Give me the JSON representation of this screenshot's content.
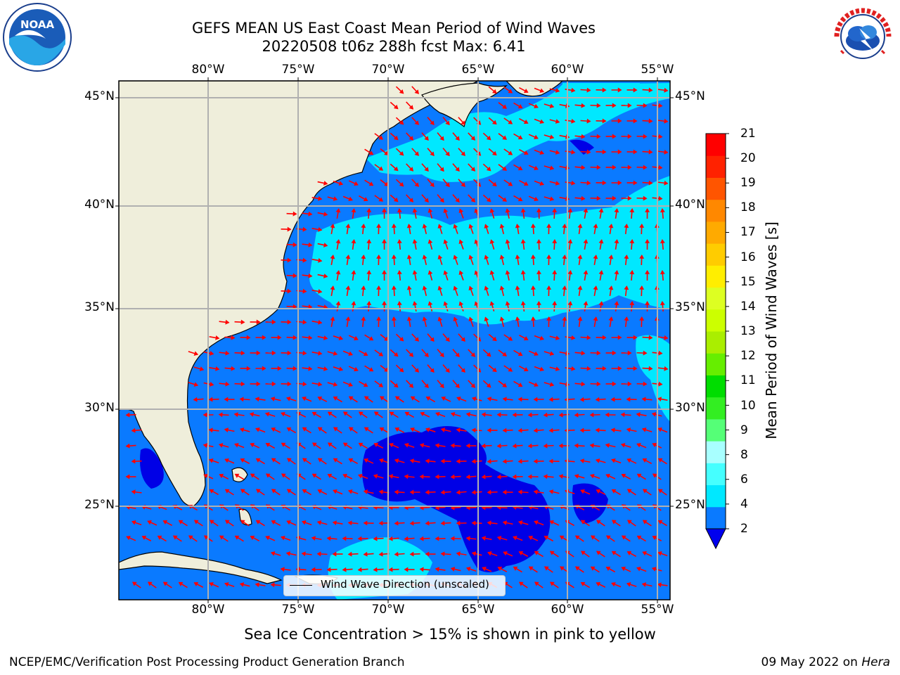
{
  "header": {
    "title_line1": "GEFS MEAN US East Coast Mean Period of Wind Waves",
    "title_line2": "20220508 t06z 288h fcst   Max: 6.41"
  },
  "logos": {
    "left": {
      "text": "NOAA",
      "icon": "noaa-logo-icon"
    },
    "right": {
      "text": "NATIONAL WEATHER SERVICE",
      "icon": "nws-logo-icon"
    }
  },
  "map": {
    "lon_labels": [
      "80°W",
      "75°W",
      "70°W",
      "65°W",
      "60°W",
      "55°W"
    ],
    "lat_labels": [
      "45°N",
      "40°N",
      "35°N",
      "30°N",
      "25°N"
    ],
    "legend_text": "Wind Wave Direction (unscaled)",
    "colors": {
      "land": "#efeedb",
      "level_2_4": "#0a7aff",
      "level_4_6": "#00e8ff",
      "below_2": "#0000e6",
      "arrow": "#ff0000",
      "grid": "#b0b0b0"
    }
  },
  "colorbar": {
    "label": "Mean Period of Wind Waves [s]",
    "ticks": [
      "21",
      "20",
      "19",
      "18",
      "17",
      "16",
      "15",
      "14",
      "13",
      "12",
      "11",
      "10",
      "9",
      "8",
      "6",
      "4",
      "2"
    ],
    "colors": [
      "#0a7aff",
      "#00e8ff",
      "#45ffff",
      "#a8ffff",
      "#55ff77",
      "#33ee22",
      "#00dd00",
      "#66ee00",
      "#aaee00",
      "#ccff00",
      "#ddff22",
      "#ffee00",
      "#ffcc00",
      "#ffaa00",
      "#ff8800",
      "#ff5500",
      "#ff2200",
      "#ff0000"
    ],
    "under_color": "#0000ee"
  },
  "footer": {
    "sea_ice_note": "Sea Ice Concentration > 15% is shown in pink to yellow",
    "left": "NCEP/EMC/Verification Post Processing Product Generation Branch",
    "right_date": "09 May 2022 on",
    "right_host": "Hera"
  }
}
